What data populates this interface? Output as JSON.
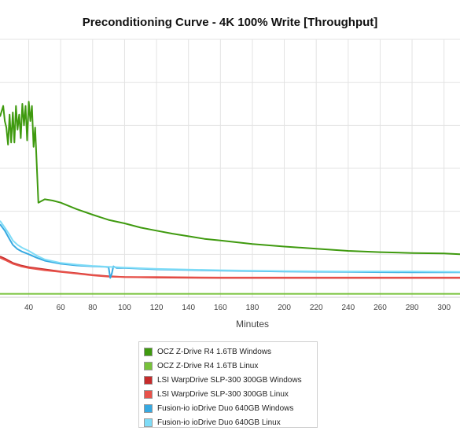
{
  "chart_data": {
    "type": "line",
    "title": "Preconditioning Curve - 4K 100% Write [Throughput]",
    "xlabel": "Minutes",
    "ylabel": "",
    "x_ticks": [
      40,
      60,
      80,
      100,
      120,
      140,
      160,
      180,
      200,
      220,
      240,
      260,
      280,
      300
    ],
    "xlim": [
      22,
      310
    ],
    "ylim": [
      0,
      6
    ],
    "grid": true,
    "legend_position": "bottom",
    "series": [
      {
        "name": "OCZ Z-Drive R4 1.6TB Windows",
        "color": "#3f9a0f",
        "x": [
          22,
          24,
          25,
          26,
          27,
          28,
          29,
          30,
          31,
          32,
          33,
          34,
          35,
          36,
          37,
          38,
          39,
          40,
          41,
          42,
          43,
          44,
          45,
          46,
          50,
          55,
          60,
          70,
          80,
          90,
          100,
          110,
          120,
          130,
          140,
          150,
          160,
          170,
          180,
          200,
          220,
          240,
          260,
          280,
          300,
          310
        ],
        "y": [
          4.2,
          4.45,
          4.1,
          3.95,
          3.55,
          4.25,
          3.6,
          4.3,
          3.6,
          4.45,
          3.9,
          4.25,
          3.7,
          4.5,
          4.0,
          4.45,
          3.65,
          4.55,
          4.1,
          4.45,
          3.5,
          3.95,
          3.1,
          2.2,
          2.28,
          2.25,
          2.2,
          2.05,
          1.92,
          1.8,
          1.72,
          1.62,
          1.55,
          1.48,
          1.42,
          1.36,
          1.32,
          1.28,
          1.24,
          1.18,
          1.13,
          1.08,
          1.05,
          1.03,
          1.02,
          1.0
        ]
      },
      {
        "name": "OCZ Z-Drive R4 1.6TB Linux",
        "color": "#77c23a",
        "x": [
          22,
          40,
          80,
          120,
          160,
          200,
          240,
          280,
          310
        ],
        "y": [
          0.08,
          0.08,
          0.08,
          0.08,
          0.08,
          0.08,
          0.08,
          0.08,
          0.08
        ]
      },
      {
        "name": "LSI WarpDrive SLP-300 300GB Windows",
        "color": "#c62b2b",
        "x": [
          22,
          25,
          30,
          35,
          40,
          50,
          60,
          70,
          80,
          90,
          100,
          120,
          160,
          200,
          240,
          280,
          310
        ],
        "y": [
          0.95,
          0.9,
          0.8,
          0.74,
          0.7,
          0.65,
          0.6,
          0.56,
          0.52,
          0.49,
          0.47,
          0.46,
          0.45,
          0.45,
          0.45,
          0.45,
          0.45
        ]
      },
      {
        "name": "LSI WarpDrive SLP-300 300GB Linux",
        "color": "#e8524a",
        "x": [
          22,
          25,
          30,
          35,
          40,
          50,
          60,
          70,
          80,
          90,
          100,
          120,
          160,
          200,
          240,
          280,
          310
        ],
        "y": [
          0.92,
          0.87,
          0.78,
          0.72,
          0.68,
          0.63,
          0.59,
          0.55,
          0.51,
          0.48,
          0.47,
          0.47,
          0.46,
          0.46,
          0.46,
          0.46,
          0.46
        ]
      },
      {
        "name": "Fusion-io ioDrive Duo 640GB Windows",
        "color": "#36a9e1",
        "x": [
          22,
          25,
          28,
          30,
          33,
          36,
          40,
          45,
          50,
          60,
          70,
          80,
          88,
          90,
          91,
          92,
          93,
          95,
          100,
          120,
          160,
          200,
          240,
          280,
          310
        ],
        "y": [
          1.7,
          1.55,
          1.35,
          1.22,
          1.12,
          1.06,
          1.0,
          0.92,
          0.85,
          0.78,
          0.74,
          0.72,
          0.71,
          0.7,
          0.45,
          0.55,
          0.72,
          0.68,
          0.68,
          0.65,
          0.62,
          0.6,
          0.59,
          0.58,
          0.58
        ]
      },
      {
        "name": "Fusion-io ioDrive Duo 640GB Linux",
        "color": "#7fdcf7",
        "x": [
          22,
          25,
          28,
          30,
          33,
          36,
          40,
          45,
          50,
          60,
          70,
          80,
          90,
          100,
          120,
          160,
          200,
          240,
          280,
          310
        ],
        "y": [
          1.78,
          1.62,
          1.45,
          1.32,
          1.22,
          1.15,
          1.08,
          0.97,
          0.88,
          0.8,
          0.76,
          0.73,
          0.71,
          0.69,
          0.66,
          0.63,
          0.61,
          0.6,
          0.6,
          0.59
        ]
      }
    ]
  }
}
